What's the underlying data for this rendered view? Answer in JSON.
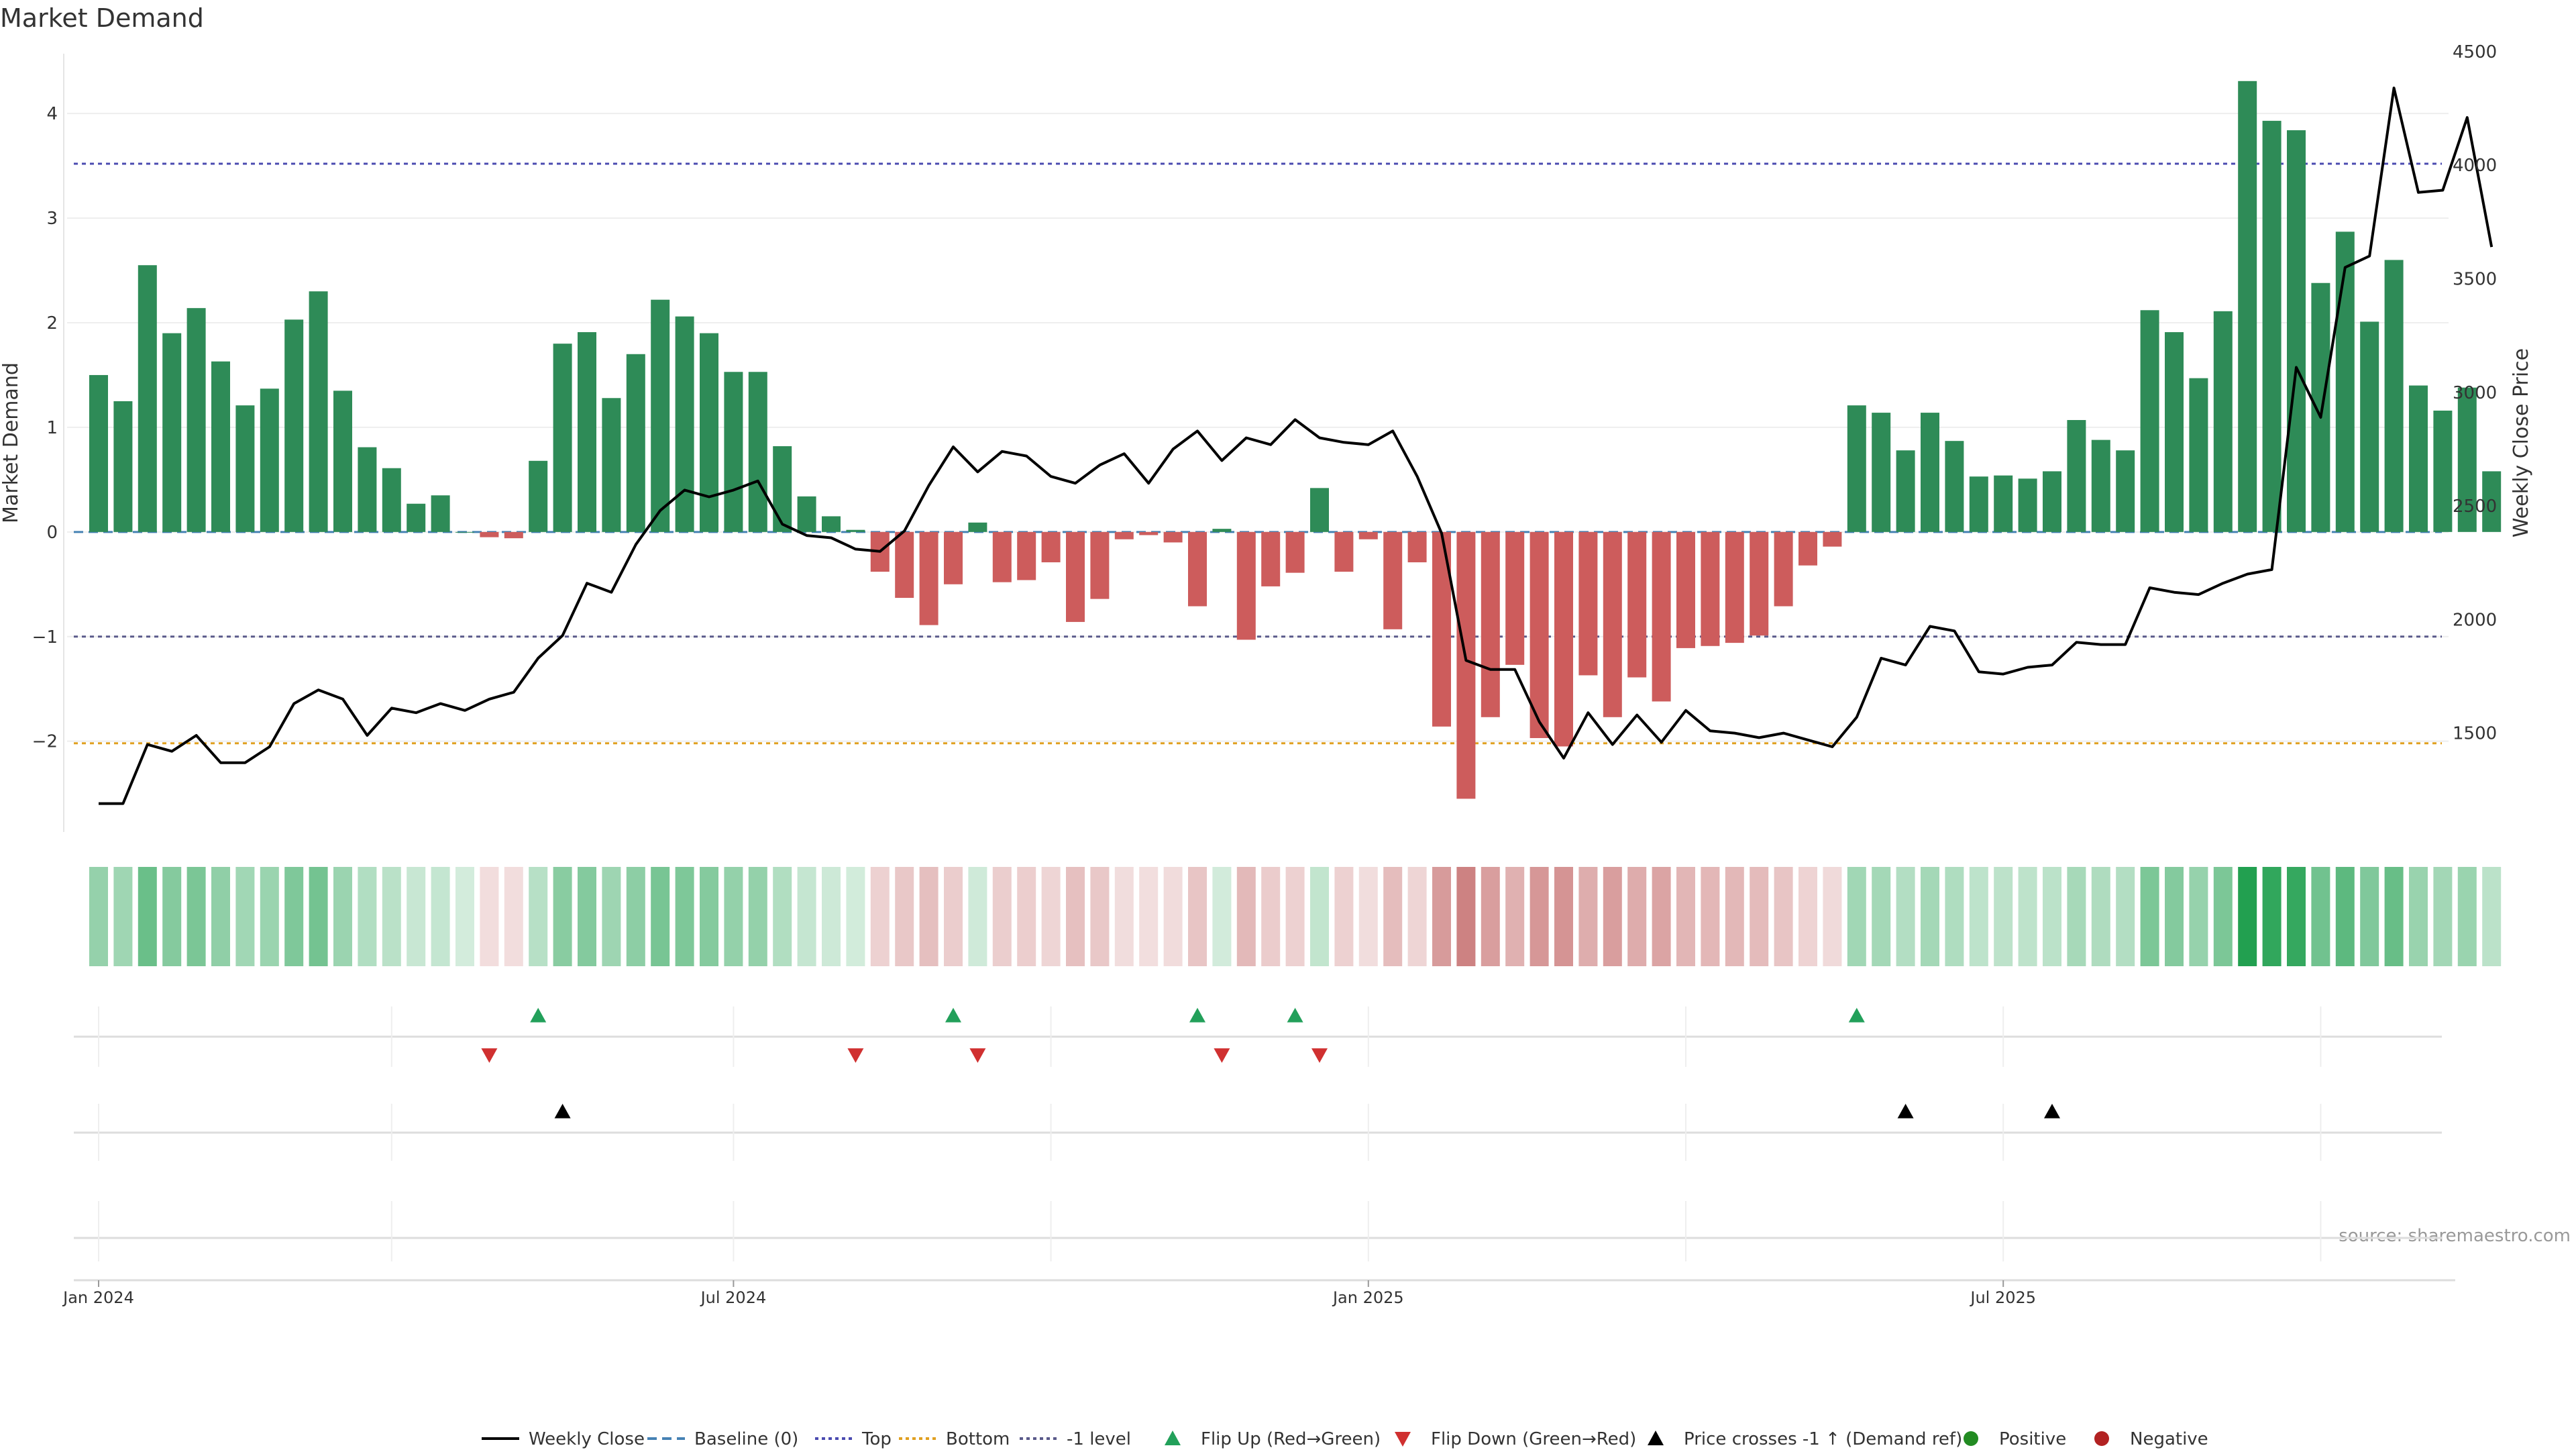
{
  "title": "Market Demand",
  "source": "source: sharemaestro.com",
  "colors": {
    "positive": "#2e8b57",
    "negative": "#cd5c5c",
    "price_line": "#000000",
    "top_line": "#4b4bb0",
    "bottom_line": "#e0a020",
    "neg1_line": "#5a5a8a",
    "baseline": "#4682b4",
    "flip_up": "#22a05a",
    "flip_down": "#d03030",
    "cross": "#000000",
    "legend_positive": "#228b22",
    "legend_negative": "#b22222"
  },
  "legend": [
    {
      "key": "weekly_close",
      "label": "Weekly Close",
      "type": "line-solid"
    },
    {
      "key": "baseline",
      "label": "Baseline (0)",
      "type": "line-dash"
    },
    {
      "key": "top",
      "label": "Top",
      "type": "line-dot-blue"
    },
    {
      "key": "bottom",
      "label": "Bottom",
      "type": "line-dot-orange"
    },
    {
      "key": "neg1",
      "label": "-1 level",
      "type": "line-dot-grey"
    },
    {
      "key": "flip_up",
      "label": "Flip Up (Red→Green)",
      "type": "tri-up-green"
    },
    {
      "key": "flip_down",
      "label": "Flip Down (Green→Red)",
      "type": "tri-down-red"
    },
    {
      "key": "price_cross",
      "label": "Price crosses -1 ↑ (Demand ref)",
      "type": "tri-up-black"
    },
    {
      "key": "positive",
      "label": "Positive",
      "type": "dot-green"
    },
    {
      "key": "negative",
      "label": "Negative",
      "type": "dot-red"
    }
  ],
  "chart_data": {
    "type": "bar",
    "title": "Market Demand",
    "ylabel": "Market Demand",
    "y2label": "Weekly Close Price",
    "ylim": [
      -2.9,
      4.7
    ],
    "y2lim": [
      1050,
      4550
    ],
    "yticks": [
      -2,
      -1,
      0,
      1,
      2,
      3,
      4
    ],
    "ytick_labels": [
      "−2",
      "−1",
      "0",
      "1",
      "2",
      "3",
      "4"
    ],
    "y2ticks": [
      1500,
      2000,
      2500,
      3000,
      3500,
      4000,
      4500
    ],
    "y2tick_labels": [
      "1500",
      "2000",
      "2500",
      "3000",
      "3500",
      "4000",
      "4500"
    ],
    "x_ticks": [
      {
        "week": 1,
        "label": "Jan 2024"
      },
      {
        "week": 27,
        "label": "Jul 2024"
      },
      {
        "week": 53,
        "label": "Jan 2025"
      },
      {
        "week": 79,
        "label": "Jul 2025"
      }
    ],
    "levels": {
      "top": 3.52,
      "bottom": -2.02,
      "neg1": -1.0,
      "baseline": 0
    },
    "demand": [
      1.5,
      1.25,
      2.55,
      1.9,
      2.14,
      1.63,
      1.21,
      1.37,
      2.03,
      2.3,
      1.35,
      0.81,
      0.61,
      0.27,
      0.35,
      0.0,
      -0.05,
      -0.06,
      0.68,
      1.8,
      1.91,
      1.28,
      1.7,
      2.22,
      2.06,
      1.9,
      1.53,
      1.53,
      0.82,
      0.34,
      0.15,
      0.02,
      -0.38,
      -0.63,
      -0.89,
      -0.5,
      0.09,
      -0.48,
      -0.46,
      -0.29,
      -0.86,
      -0.64,
      -0.07,
      -0.03,
      -0.1,
      -0.71,
      0.03,
      -1.03,
      -0.52,
      -0.39,
      0.42,
      -0.38,
      -0.07,
      -0.93,
      -0.29,
      -1.86,
      -2.55,
      -1.77,
      -1.27,
      -1.97,
      -2.05,
      -1.37,
      -1.77,
      -1.39,
      -1.62,
      -1.11,
      -1.09,
      -1.06,
      -0.99,
      -0.71,
      -0.32,
      -0.14,
      1.21,
      1.14,
      0.78,
      1.14,
      0.87,
      0.53,
      0.54,
      0.51,
      0.58,
      1.07,
      0.88,
      0.78,
      2.12,
      1.91,
      1.47,
      2.11,
      4.31,
      3.93,
      3.84,
      2.38,
      2.87,
      2.01,
      2.6,
      1.4,
      1.16,
      1.38,
      0.58
    ],
    "price": [
      1190,
      1190,
      1450,
      1420,
      1490,
      1370,
      1370,
      1440,
      1630,
      1690,
      1650,
      1490,
      1610,
      1590,
      1630,
      1600,
      1650,
      1680,
      1830,
      1930,
      2160,
      2120,
      2330,
      2480,
      2570,
      2540,
      2570,
      2610,
      2420,
      2370,
      2360,
      2310,
      2300,
      2390,
      2590,
      2760,
      2650,
      2740,
      2720,
      2630,
      2600,
      2680,
      2730,
      2600,
      2750,
      2830,
      2700,
      2800,
      2770,
      2880,
      2800,
      2780,
      2770,
      2830,
      2630,
      2380,
      1820,
      1780,
      1780,
      1550,
      1390,
      1590,
      1450,
      1580,
      1460,
      1600,
      1510,
      1500,
      1480,
      1500,
      1470,
      1440,
      1570,
      1830,
      1800,
      1970,
      1950,
      1770,
      1760,
      1790,
      1800,
      1900,
      1890,
      1890,
      2140,
      2120,
      2110,
      2160,
      2200,
      2220,
      3110,
      2890,
      3550,
      3600,
      4340,
      3880,
      3890,
      4210,
      3640
    ],
    "flip_up_weeks": [
      19,
      36,
      46,
      50,
      73
    ],
    "flip_down_weeks": [
      17,
      32,
      37,
      47,
      51
    ],
    "price_cross_weeks": [
      20,
      75,
      81
    ]
  }
}
